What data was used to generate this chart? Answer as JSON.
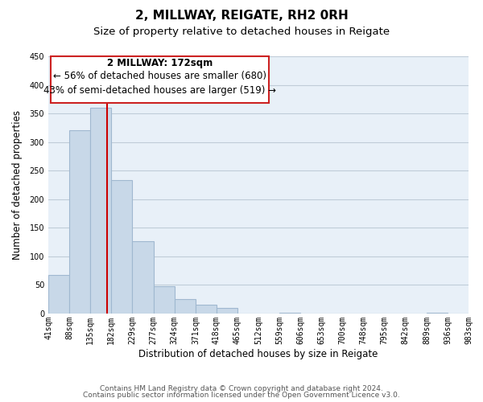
{
  "title": "2, MILLWAY, REIGATE, RH2 0RH",
  "subtitle": "Size of property relative to detached houses in Reigate",
  "xlabel": "Distribution of detached houses by size in Reigate",
  "ylabel": "Number of detached properties",
  "bar_color": "#c8d8e8",
  "bar_edge_color": "#a0b8d0",
  "background_color": "#ffffff",
  "plot_bg_color": "#e8f0f8",
  "grid_color": "#c0ccd8",
  "vline_x": 172,
  "vline_color": "#cc0000",
  "bin_edges": [
    41,
    88,
    135,
    182,
    229,
    277,
    324,
    371,
    418,
    465,
    512,
    559,
    606,
    653,
    700,
    748,
    795,
    842,
    889,
    936,
    983
  ],
  "bar_heights": [
    68,
    320,
    360,
    234,
    127,
    48,
    25,
    15,
    10,
    0,
    0,
    2,
    0,
    0,
    0,
    0,
    0,
    0,
    2,
    0
  ],
  "tick_labels": [
    "41sqm",
    "88sqm",
    "135sqm",
    "182sqm",
    "229sqm",
    "277sqm",
    "324sqm",
    "371sqm",
    "418sqm",
    "465sqm",
    "512sqm",
    "559sqm",
    "606sqm",
    "653sqm",
    "700sqm",
    "748sqm",
    "795sqm",
    "842sqm",
    "889sqm",
    "936sqm",
    "983sqm"
  ],
  "ylim": [
    0,
    450
  ],
  "ann_line1": "2 MILLWAY: 172sqm",
  "ann_line2": "← 56% of detached houses are smaller (680)",
  "ann_line3": "43% of semi-detached houses are larger (519) →",
  "footer_line1": "Contains HM Land Registry data © Crown copyright and database right 2024.",
  "footer_line2": "Contains public sector information licensed under the Open Government Licence v3.0.",
  "title_fontsize": 11,
  "subtitle_fontsize": 9.5,
  "axis_label_fontsize": 8.5,
  "tick_fontsize": 7,
  "annotation_fontsize": 8.5,
  "footer_fontsize": 6.5
}
